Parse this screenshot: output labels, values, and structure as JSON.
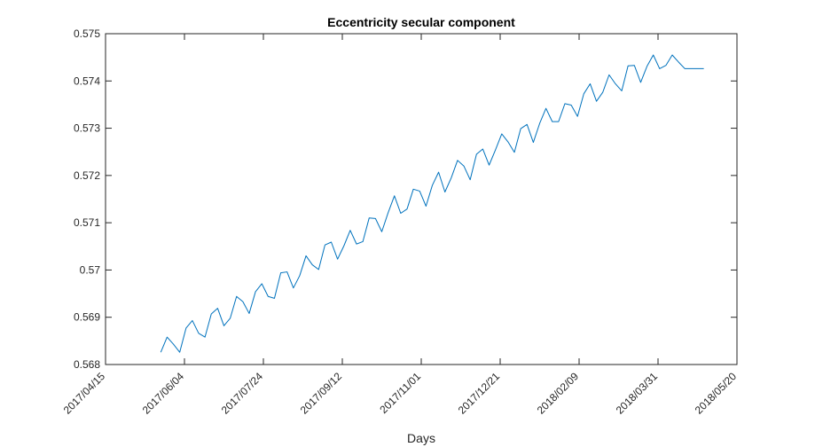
{
  "chart_data": {
    "type": "line",
    "title": "Eccentricity secular component",
    "xlabel": "Days",
    "ylabel": "",
    "x_axis": {
      "kind": "date",
      "range": [
        "2017/04/15",
        "2018/05/20"
      ],
      "ticks": [
        "2017/04/15",
        "2017/06/04",
        "2017/07/24",
        "2017/09/12",
        "2017/11/01",
        "2017/12/21",
        "2018/02/09",
        "2018/03/31",
        "2018/05/20"
      ]
    },
    "y_axis": {
      "range": [
        0.568,
        0.575
      ],
      "ticks": [
        "0.568",
        "0.569",
        "0.57",
        "0.571",
        "0.572",
        "0.573",
        "0.574",
        "0.575"
      ],
      "tick_values": [
        0.568,
        0.569,
        0.57,
        0.571,
        0.572,
        0.573,
        0.574,
        0.575
      ]
    },
    "grid": false,
    "series": [
      {
        "color": "#0072bd",
        "x": [
          "2017/05/20",
          "2017/05/24",
          "2017/05/28",
          "2017/06/01",
          "2017/06/05",
          "2017/06/09",
          "2017/06/13",
          "2017/06/17",
          "2017/06/21",
          "2017/06/25",
          "2017/06/29",
          "2017/07/03",
          "2017/07/07",
          "2017/07/11",
          "2017/07/15",
          "2017/07/19",
          "2017/07/23",
          "2017/07/27",
          "2017/07/31",
          "2017/08/04",
          "2017/08/08",
          "2017/08/12",
          "2017/08/16",
          "2017/08/20",
          "2017/08/24",
          "2017/08/28",
          "2017/09/01",
          "2017/09/05",
          "2017/09/09",
          "2017/09/13",
          "2017/09/17",
          "2017/09/21",
          "2017/09/25",
          "2017/09/29",
          "2017/10/03",
          "2017/10/07",
          "2017/10/11",
          "2017/10/15",
          "2017/10/19",
          "2017/10/23",
          "2017/10/27",
          "2017/10/31",
          "2017/11/04",
          "2017/11/08",
          "2017/11/12",
          "2017/11/16",
          "2017/11/20",
          "2017/11/24",
          "2017/11/28",
          "2017/12/02",
          "2017/12/06",
          "2017/12/10",
          "2017/12/14",
          "2017/12/18",
          "2017/12/22",
          "2017/12/26",
          "2017/12/30",
          "2018/01/03",
          "2018/01/07",
          "2018/01/11",
          "2018/01/15",
          "2018/01/19",
          "2018/01/23",
          "2018/01/27",
          "2018/01/31",
          "2018/02/04",
          "2018/02/08",
          "2018/02/12",
          "2018/02/16",
          "2018/02/20",
          "2018/02/24",
          "2018/02/28",
          "2018/03/04",
          "2018/03/08",
          "2018/03/12",
          "2018/03/16",
          "2018/03/20",
          "2018/03/24",
          "2018/03/28",
          "2018/04/01",
          "2018/04/05",
          "2018/04/09",
          "2018/04/13",
          "2018/04/17",
          "2018/04/21",
          "2018/04/25",
          "2018/04/29"
        ],
        "values": [
          0.56826,
          0.56858,
          0.56843,
          0.56826,
          0.56877,
          0.56893,
          0.56866,
          0.56858,
          0.56907,
          0.56919,
          0.56882,
          0.56898,
          0.56944,
          0.56933,
          0.56908,
          0.56954,
          0.56971,
          0.56944,
          0.5694,
          0.56994,
          0.56996,
          0.56962,
          0.56988,
          0.5703,
          0.57011,
          0.57001,
          0.57053,
          0.57059,
          0.57023,
          0.57051,
          0.57084,
          0.57055,
          0.5706,
          0.5711,
          0.57109,
          0.57081,
          0.57121,
          0.57157,
          0.5712,
          0.57129,
          0.57171,
          0.57167,
          0.57135,
          0.57179,
          0.57207,
          0.57165,
          0.57195,
          0.57232,
          0.5722,
          0.57191,
          0.57245,
          0.57256,
          0.57222,
          0.57254,
          0.57288,
          0.57271,
          0.57249,
          0.57299,
          0.57308,
          0.5727,
          0.5731,
          0.57342,
          0.57314,
          0.57314,
          0.57352,
          0.57349,
          0.57325,
          0.57373,
          0.57394,
          0.57357,
          0.57376,
          0.57413,
          0.57394,
          0.57379,
          0.57432,
          0.57433,
          0.57397,
          0.57431,
          0.57455,
          0.57426,
          0.57433,
          0.57455,
          0.5744,
          0.57426,
          0.57426,
          0.57426,
          0.57426
        ]
      }
    ]
  }
}
